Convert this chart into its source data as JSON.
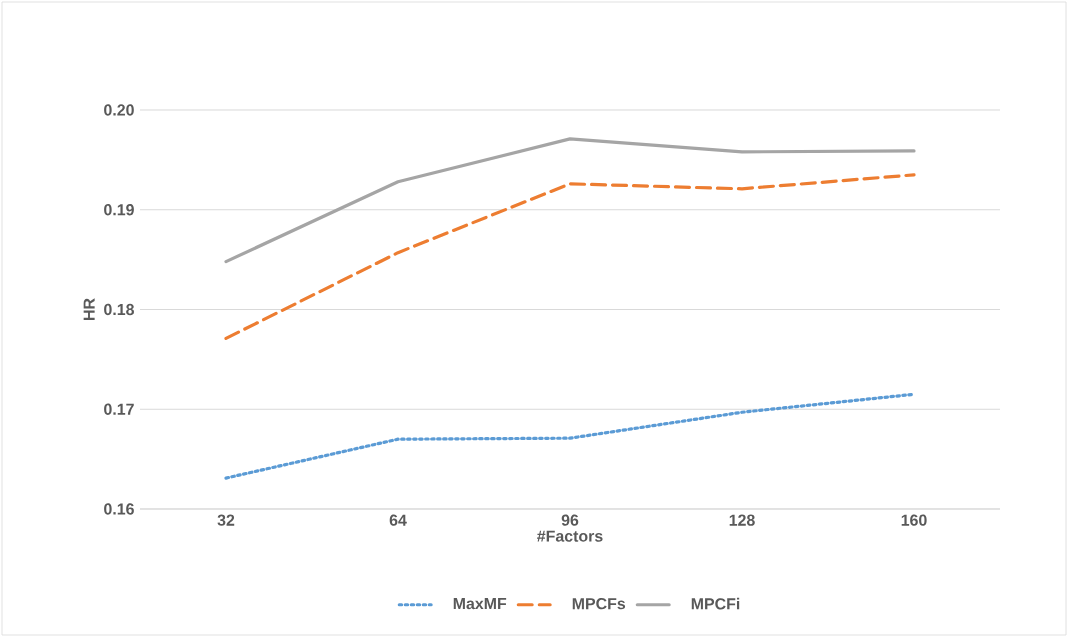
{
  "chart_data": {
    "type": "line",
    "xlabel": "#Factors",
    "ylabel": "HR",
    "categories": [
      "32",
      "64",
      "96",
      "128",
      "160"
    ],
    "series": [
      {
        "name": "MaxMF",
        "color": "#5b9bd5",
        "line_style": "dotted",
        "values": [
          0.1631,
          0.167,
          0.1671,
          0.1697,
          0.1715
        ]
      },
      {
        "name": "MPCFs",
        "color": "#ed7d31",
        "line_style": "dashed",
        "values": [
          0.1771,
          0.1857,
          0.1926,
          0.1921,
          0.1935
        ]
      },
      {
        "name": "MPCFi",
        "color": "#a5a5a5",
        "line_style": "solid",
        "values": [
          0.1848,
          0.1928,
          0.1971,
          0.1958,
          0.1959
        ]
      }
    ],
    "ylim": [
      0.16,
      0.2
    ],
    "yticks": [
      {
        "value": 0.16,
        "label": "0.16"
      },
      {
        "value": 0.17,
        "label": "0.17"
      },
      {
        "value": 0.18,
        "label": "0.18"
      },
      {
        "value": 0.19,
        "label": "0.19"
      },
      {
        "value": 0.2,
        "label": "0.20"
      }
    ],
    "grid": "y",
    "legend": "bottom"
  }
}
